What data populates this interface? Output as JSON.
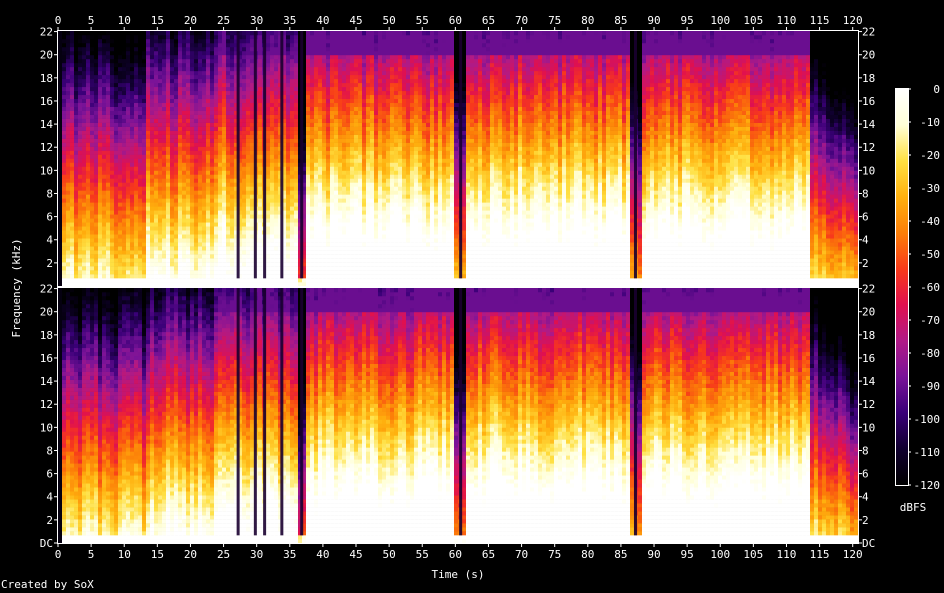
{
  "credit": "Created by SoX",
  "colors": {
    "background": "#000000",
    "text": "#ffffff",
    "palette": [
      "#000000",
      "#10002f",
      "#3a0078",
      "#7a1398",
      "#b01a86",
      "#e0104f",
      "#f83a1a",
      "#fc7e08",
      "#ffb00e",
      "#ffe042",
      "#ffffd8",
      "#ffffff"
    ]
  },
  "chart_data": {
    "type": "heatmap",
    "title": "",
    "xlabel": "Time (s)",
    "ylabel": "Frequency (kHz)",
    "xlim": [
      0,
      120.8
    ],
    "ylim": [
      0,
      22.05
    ],
    "x_ticks": [
      "0",
      "5",
      "10",
      "15",
      "20",
      "25",
      "30",
      "35",
      "40",
      "45",
      "50",
      "55",
      "60",
      "65",
      "70",
      "75",
      "80",
      "85",
      "90",
      "95",
      "100",
      "105",
      "110",
      "115",
      "120"
    ],
    "y_ticks": [
      "DC",
      "2",
      "4",
      "6",
      "8",
      "10",
      "12",
      "14",
      "16",
      "18",
      "20",
      "22"
    ],
    "channels": [
      "channel 1",
      "channel 2"
    ],
    "colorbar": {
      "label": "dBFS",
      "range": [
        -120,
        0
      ],
      "ticks": [
        "0",
        "-10",
        "-20",
        "-30",
        "-40",
        "-50",
        "-60",
        "-70",
        "-80",
        "-90",
        "-100",
        "-110",
        "-120"
      ]
    },
    "segments": [
      {
        "start": 0,
        "end": 0.6,
        "level": 0.02
      },
      {
        "start": 0.6,
        "end": 7,
        "level": 0.5
      },
      {
        "start": 7,
        "end": 7.3,
        "level": 0.2
      },
      {
        "start": 7.3,
        "end": 13.2,
        "level": 0.5
      },
      {
        "start": 13.2,
        "end": 23.8,
        "level": 0.62
      },
      {
        "start": 23.8,
        "end": 36.5,
        "level": 0.7
      },
      {
        "start": 36.5,
        "end": 37.2,
        "level": 0.15
      },
      {
        "start": 37.2,
        "end": 59.8,
        "level": 0.8
      },
      {
        "start": 59.8,
        "end": 61.8,
        "level": 0.3
      },
      {
        "start": 61.8,
        "end": 86.5,
        "level": 0.82
      },
      {
        "start": 86.5,
        "end": 88,
        "level": 0.3
      },
      {
        "start": 88,
        "end": 113.5,
        "level": 0.8
      },
      {
        "start": 113.5,
        "end": 120.8,
        "level": 0.45
      }
    ],
    "dropouts": [
      27.2,
      29.8,
      31.2,
      33.8,
      36.8,
      60.8,
      87.2
    ]
  }
}
